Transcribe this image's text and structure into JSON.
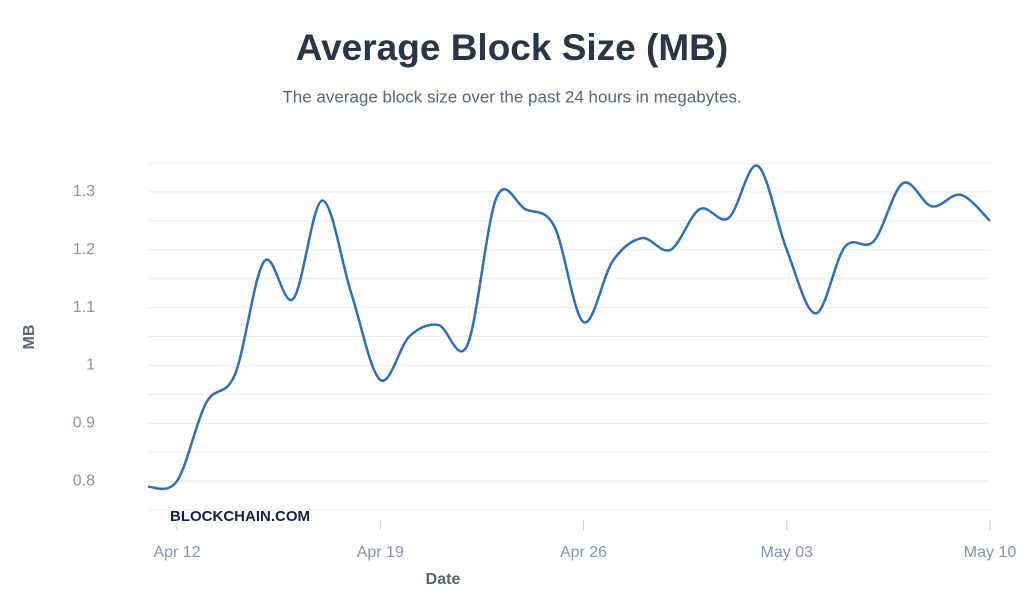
{
  "chart_data": {
    "type": "line",
    "title": "Average Block Size (MB)",
    "subtitle": "The average block size over the past 24 hours in megabytes.",
    "x_label": "Date",
    "y_label": "MB",
    "watermark": "BLOCKCHAIN.COM",
    "categories": [
      null,
      "Apr 12",
      null,
      null,
      null,
      null,
      null,
      null,
      "Apr 19",
      null,
      null,
      null,
      null,
      null,
      null,
      "Apr 26",
      null,
      null,
      null,
      null,
      null,
      null,
      "May 03",
      null,
      null,
      null,
      null,
      null,
      null,
      "May 10"
    ],
    "series": [
      {
        "name": "Average Block Size",
        "color": "#2f6fb5",
        "values": [
          0.79,
          0.8,
          0.935,
          0.985,
          1.18,
          1.115,
          1.285,
          1.125,
          0.975,
          1.05,
          1.07,
          1.035,
          1.29,
          1.27,
          1.24,
          1.075,
          1.18,
          1.22,
          1.2,
          1.27,
          1.255,
          1.345,
          1.2,
          1.09,
          1.205,
          1.215,
          1.315,
          1.275,
          1.295,
          1.25
        ]
      }
    ],
    "ylim": [
      0.75,
      1.35
    ],
    "yticks": [
      0.8,
      0.9,
      1,
      1.1,
      1.2,
      1.3
    ],
    "minor_yticks": [
      0.75,
      0.85,
      0.95,
      1.05,
      1.15,
      1.25,
      1.35
    ],
    "grid": true
  }
}
